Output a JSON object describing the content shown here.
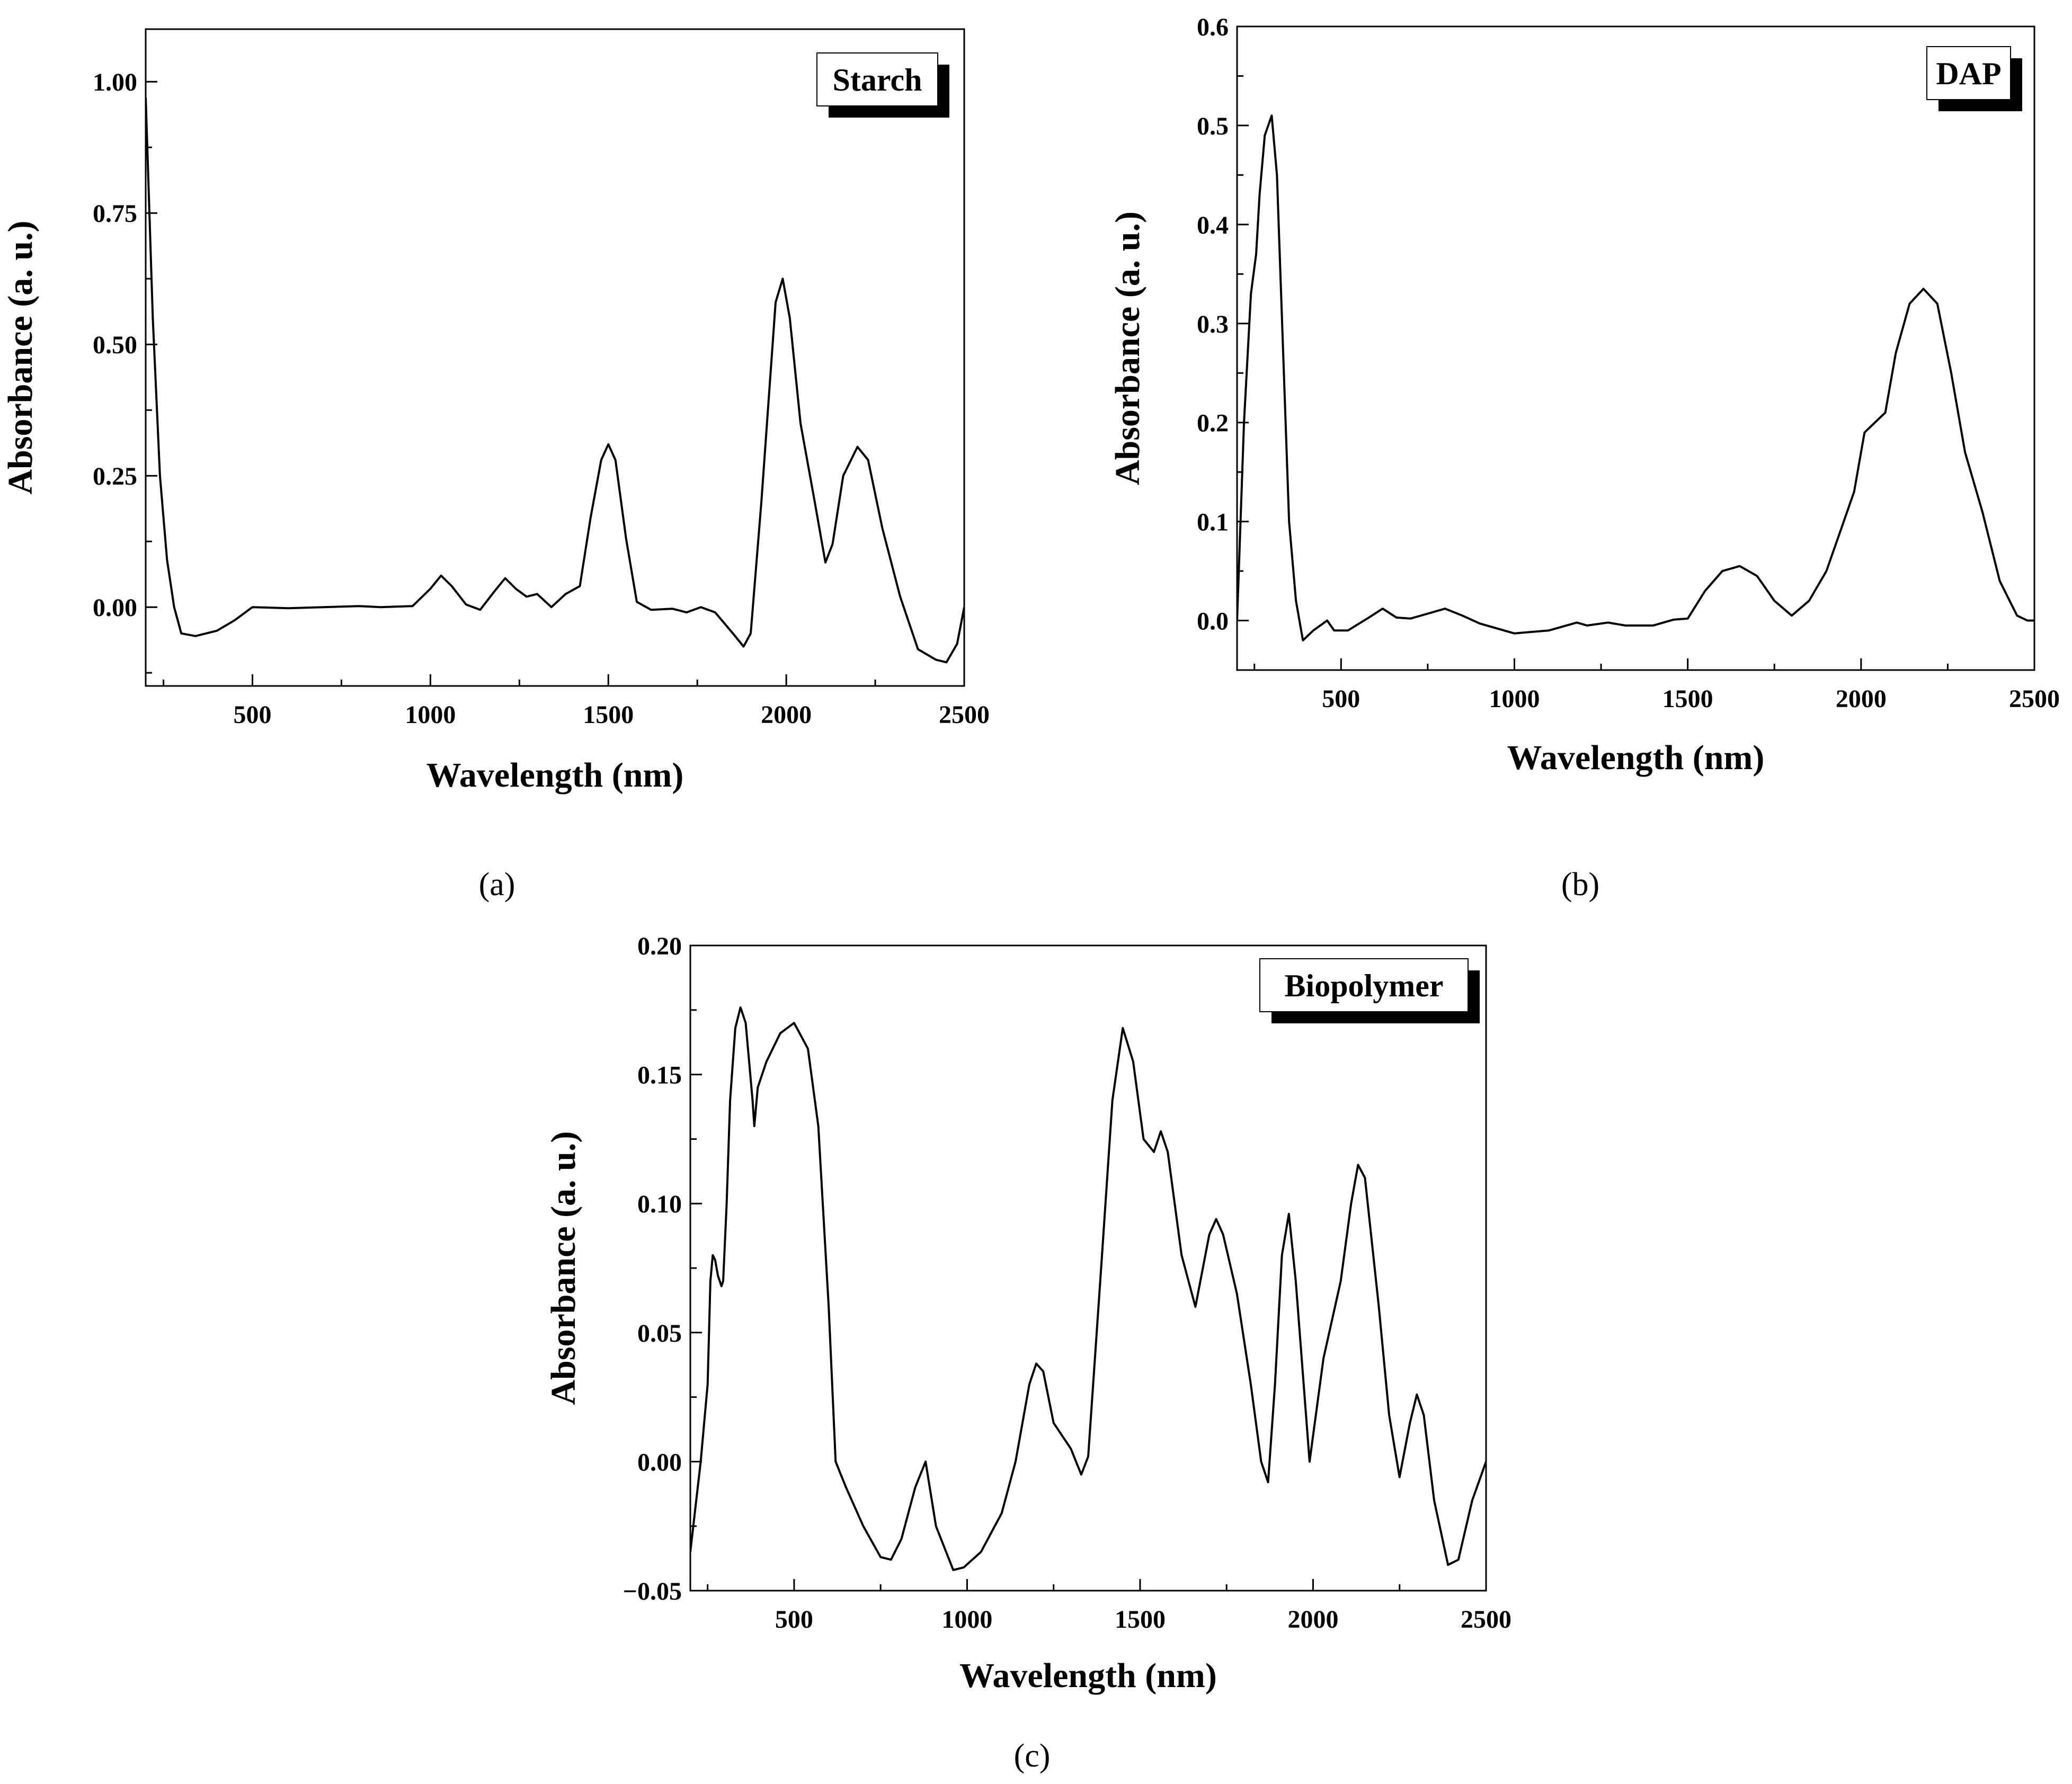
{
  "chart_data": [
    {
      "type": "line",
      "panel_label": "(a)",
      "legend": "Starch",
      "xlabel": "Wavelength (nm)",
      "ylabel": "Absorbance (a. u.)",
      "xlim": [
        200,
        2500
      ],
      "ylim": [
        -0.15,
        1.1
      ],
      "xticks": [
        500,
        1000,
        1500,
        2000,
        2500
      ],
      "xtick_labels": [
        "500",
        "1000",
        "1500",
        "2000",
        "2500"
      ],
      "yticks": [
        0.0,
        0.25,
        0.5,
        0.75,
        1.0
      ],
      "ytick_labels": [
        "0.00",
        "0.25",
        "0.50",
        "0.75",
        "1.00"
      ],
      "series": [
        {
          "name": "Starch",
          "x": [
            200,
            220,
            240,
            260,
            280,
            300,
            340,
            400,
            450,
            500,
            600,
            700,
            800,
            860,
            950,
            1000,
            1030,
            1060,
            1100,
            1140,
            1180,
            1210,
            1240,
            1270,
            1300,
            1340,
            1380,
            1420,
            1450,
            1480,
            1500,
            1520,
            1550,
            1580,
            1620,
            1680,
            1720,
            1760,
            1800,
            1850,
            1880,
            1900,
            1930,
            1970,
            1990,
            2010,
            2040,
            2080,
            2110,
            2130,
            2160,
            2200,
            2230,
            2270,
            2320,
            2370,
            2420,
            2450,
            2480,
            2500
          ],
          "y": [
            0.97,
            0.55,
            0.25,
            0.09,
            0.0,
            -0.05,
            -0.055,
            -0.045,
            -0.025,
            0.0,
            -0.002,
            0.0,
            0.002,
            0.0,
            0.002,
            0.035,
            0.06,
            0.04,
            0.005,
            -0.005,
            0.03,
            0.055,
            0.035,
            0.02,
            0.025,
            0.0,
            0.025,
            0.04,
            0.17,
            0.28,
            0.31,
            0.28,
            0.13,
            0.01,
            -0.005,
            -0.003,
            -0.01,
            0.0,
            -0.01,
            -0.05,
            -0.075,
            -0.05,
            0.2,
            0.58,
            0.625,
            0.55,
            0.35,
            0.2,
            0.085,
            0.12,
            0.25,
            0.305,
            0.28,
            0.15,
            0.02,
            -0.08,
            -0.1,
            -0.105,
            -0.07,
            0.0
          ]
        }
      ]
    },
    {
      "type": "line",
      "panel_label": "(b)",
      "legend": "DAP",
      "xlabel": "Wavelength (nm)",
      "ylabel": "Absorbance (a. u.)",
      "xlim": [
        200,
        2500
      ],
      "ylim": [
        -0.05,
        0.6
      ],
      "xticks": [
        500,
        1000,
        1500,
        2000,
        2500
      ],
      "xtick_labels": [
        "500",
        "1000",
        "1500",
        "2000",
        "2500"
      ],
      "yticks": [
        0.0,
        0.1,
        0.2,
        0.3,
        0.4,
        0.5,
        0.6
      ],
      "ytick_labels": [
        "0.0",
        "0.1",
        "0.2",
        "0.3",
        "0.4",
        "0.5",
        "0.6"
      ],
      "series": [
        {
          "name": "DAP",
          "x": [
            200,
            220,
            240,
            255,
            265,
            280,
            300,
            315,
            330,
            350,
            370,
            390,
            420,
            460,
            480,
            520,
            580,
            620,
            660,
            700,
            750,
            800,
            850,
            900,
            1000,
            1100,
            1180,
            1210,
            1270,
            1320,
            1400,
            1460,
            1500,
            1550,
            1600,
            1650,
            1700,
            1750,
            1800,
            1850,
            1900,
            1940,
            1980,
            2010,
            2040,
            2070,
            2100,
            2140,
            2180,
            2220,
            2260,
            2300,
            2350,
            2400,
            2450,
            2480,
            2500
          ],
          "y": [
            0.0,
            0.2,
            0.33,
            0.37,
            0.43,
            0.49,
            0.51,
            0.45,
            0.3,
            0.1,
            0.02,
            -0.02,
            -0.01,
            0.0,
            -0.01,
            -0.01,
            0.003,
            0.012,
            0.003,
            0.002,
            0.007,
            0.012,
            0.005,
            -0.003,
            -0.013,
            -0.01,
            -0.002,
            -0.005,
            -0.002,
            -0.005,
            -0.005,
            0.001,
            0.002,
            0.03,
            0.05,
            0.055,
            0.045,
            0.02,
            0.005,
            0.02,
            0.05,
            0.09,
            0.13,
            0.19,
            0.2,
            0.21,
            0.27,
            0.32,
            0.335,
            0.32,
            0.25,
            0.17,
            0.11,
            0.04,
            0.005,
            0.0,
            0.0
          ]
        }
      ]
    },
    {
      "type": "line",
      "panel_label": "(c)",
      "legend": "Biopolymer",
      "xlabel": "Wavelength (nm)",
      "ylabel": "Absorbance (a. u.)",
      "xlim": [
        200,
        2500
      ],
      "ylim": [
        -0.05,
        0.2
      ],
      "xticks": [
        500,
        1000,
        1500,
        2000,
        2500
      ],
      "xtick_labels": [
        "500",
        "1000",
        "1500",
        "2000",
        "2500"
      ],
      "yticks": [
        -0.05,
        0.0,
        0.05,
        0.1,
        0.15,
        0.2
      ],
      "ytick_labels": [
        "−0.05",
        "0.00",
        "0.05",
        "0.10",
        "0.15",
        "0.20"
      ],
      "series": [
        {
          "name": "Biopolymer",
          "x": [
            200,
            230,
            250,
            258,
            265,
            272,
            280,
            290,
            295,
            305,
            315,
            330,
            345,
            360,
            380,
            385,
            395,
            420,
            460,
            500,
            540,
            570,
            600,
            620,
            650,
            700,
            750,
            780,
            810,
            850,
            880,
            910,
            960,
            990,
            1040,
            1100,
            1140,
            1180,
            1200,
            1220,
            1250,
            1300,
            1330,
            1350,
            1390,
            1420,
            1450,
            1480,
            1510,
            1540,
            1560,
            1580,
            1620,
            1660,
            1700,
            1720,
            1740,
            1780,
            1820,
            1850,
            1870,
            1890,
            1910,
            1930,
            1950,
            1990,
            2030,
            2080,
            2110,
            2130,
            2150,
            2190,
            2220,
            2250,
            2280,
            2300,
            2320,
            2350,
            2390,
            2420,
            2460,
            2500
          ],
          "y": [
            -0.035,
            0.0,
            0.03,
            0.07,
            0.08,
            0.078,
            0.072,
            0.068,
            0.07,
            0.1,
            0.14,
            0.168,
            0.176,
            0.17,
            0.14,
            0.13,
            0.145,
            0.155,
            0.166,
            0.17,
            0.16,
            0.13,
            0.06,
            0.0,
            -0.01,
            -0.025,
            -0.037,
            -0.038,
            -0.03,
            -0.01,
            0.0,
            -0.025,
            -0.042,
            -0.041,
            -0.035,
            -0.02,
            0.0,
            0.03,
            0.038,
            0.035,
            0.015,
            0.005,
            -0.005,
            0.002,
            0.08,
            0.14,
            0.168,
            0.155,
            0.125,
            0.12,
            0.128,
            0.12,
            0.08,
            0.06,
            0.088,
            0.094,
            0.088,
            0.065,
            0.03,
            0.0,
            -0.008,
            0.03,
            0.08,
            0.096,
            0.07,
            0.0,
            0.04,
            0.07,
            0.1,
            0.115,
            0.11,
            0.06,
            0.018,
            -0.006,
            0.015,
            0.026,
            0.018,
            -0.015,
            -0.04,
            -0.038,
            -0.015,
            0.0
          ]
        }
      ]
    }
  ]
}
